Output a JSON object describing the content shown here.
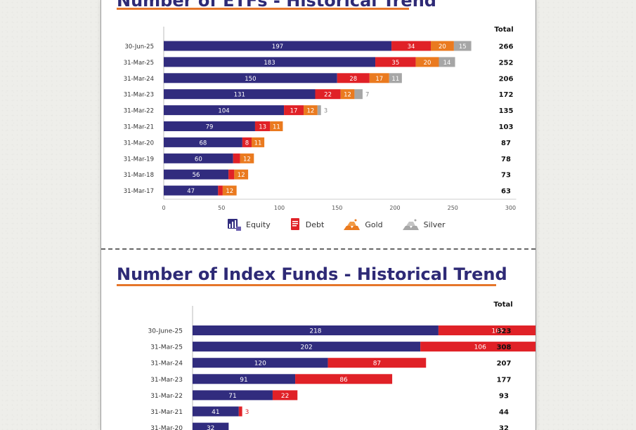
{
  "chart_data": [
    {
      "type": "bar",
      "orientation": "horizontal",
      "stacked": true,
      "title": "Number of ETFs - Historical Trend",
      "categories": [
        "30-Jun-25",
        "31-Mar-25",
        "31-Mar-24",
        "31-Mar-23",
        "31-Mar-22",
        "31-Mar-21",
        "31-Mar-20",
        "31-Mar-19",
        "31-Mar-18",
        "31-Mar-17"
      ],
      "series": [
        {
          "name": "Equity",
          "color": "#312c7e",
          "values": [
            197,
            183,
            150,
            131,
            104,
            79,
            68,
            60,
            56,
            47
          ]
        },
        {
          "name": "Debt",
          "color": "#e02127",
          "values": [
            34,
            35,
            28,
            22,
            17,
            13,
            8,
            6,
            5,
            4
          ]
        },
        {
          "name": "Gold",
          "color": "#ea7a1f",
          "values": [
            20,
            20,
            17,
            12,
            12,
            11,
            11,
            12,
            12,
            12
          ]
        },
        {
          "name": "Silver",
          "color": "#a6a6a6",
          "values": [
            15,
            14,
            11,
            7,
            3,
            0,
            0,
            0,
            0,
            0
          ]
        }
      ],
      "totals_header": "Total",
      "totals": [
        266,
        252,
        206,
        172,
        135,
        103,
        87,
        78,
        73,
        63
      ],
      "xlim": [
        0,
        300
      ],
      "xticks": [
        0,
        50,
        100,
        150,
        200,
        250,
        300
      ],
      "legend": "bottom"
    },
    {
      "type": "bar",
      "orientation": "horizontal",
      "stacked": true,
      "title": "Number of Index Funds - Historical Trend",
      "categories": [
        "30-June-25",
        "31-Mar-25",
        "31-Mar-24",
        "31-Mar-23",
        "31-Mar-22",
        "31-Mar-21",
        "31-Mar-20"
      ],
      "series": [
        {
          "name": "",
          "color": "#312c7e",
          "values": [
            218,
            202,
            120,
            91,
            71,
            41,
            32
          ]
        },
        {
          "name": "",
          "color": "#e02127",
          "values": [
            105,
            106,
            87,
            86,
            22,
            3,
            0
          ]
        }
      ],
      "totals_header": "Total",
      "totals": [
        323,
        308,
        207,
        177,
        93,
        44,
        32
      ]
    }
  ],
  "legend_icons": [
    "equity-icon",
    "debt-icon",
    "gold-icon",
    "silver-icon"
  ]
}
